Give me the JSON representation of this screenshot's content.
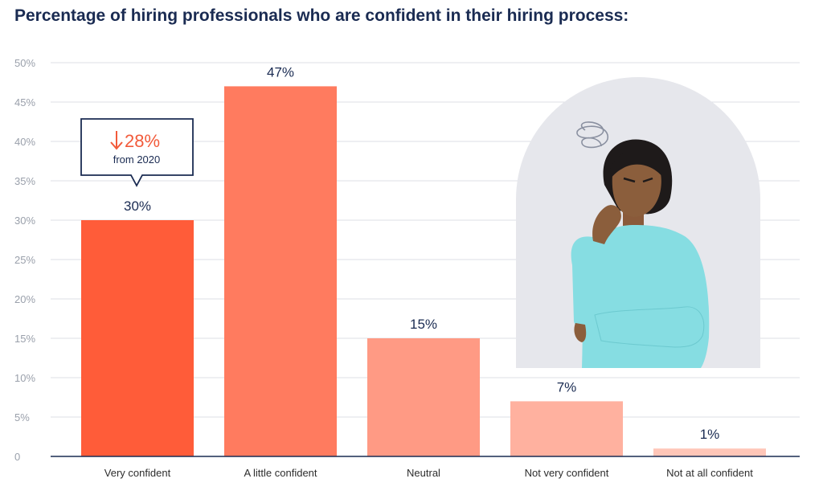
{
  "page": {
    "title": "Percentage of hiring professionals who are confident in their hiring process:"
  },
  "callout": {
    "arrow_icon": "down-arrow-icon",
    "change": "28%",
    "subtext": "from 2020",
    "color": "#f25a3a"
  },
  "illustration": {
    "name": "thinking-woman-illustration"
  },
  "chart_data": {
    "type": "bar",
    "title": "Percentage of hiring professionals who are confident in their hiring process:",
    "categories": [
      "Very confident",
      "A little confident",
      "Neutral",
      "Not very confident",
      "Not at all confident"
    ],
    "values": [
      30,
      47,
      15,
      7,
      1
    ],
    "data_labels": [
      "30%",
      "47%",
      "15%",
      "7%",
      "1%"
    ],
    "colors": [
      "#ff5c39",
      "#ff7b5f",
      "#ff9a84",
      "#ffb19f",
      "#ffc6b8"
    ],
    "ylim": [
      0,
      50
    ],
    "yticks": [
      0,
      5,
      10,
      15,
      20,
      25,
      30,
      35,
      40,
      45,
      50
    ],
    "ytick_labels": [
      "0",
      "5%",
      "10%",
      "15%",
      "20%",
      "25%",
      "30%",
      "35%",
      "40%",
      "45%",
      "50%"
    ],
    "xlabel": "",
    "ylabel": "",
    "grid": true,
    "legend": "none"
  }
}
